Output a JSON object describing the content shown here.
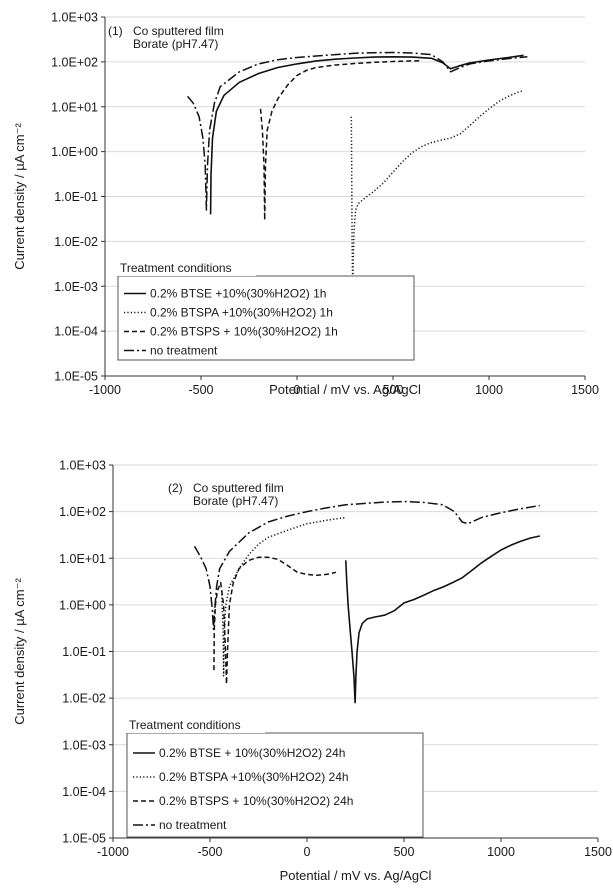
{
  "chart_data": [
    {
      "type": "line",
      "panel_label": "(1)",
      "annotation_lines": [
        "Co sputtered film",
        "Borate (pH7.47)"
      ],
      "xlabel": "Potential / mV vs. Ag/AgCl",
      "ylabel": "Current density / µA cm⁻²",
      "xscale": "linear",
      "yscale": "log",
      "xlim": [
        -1000,
        1500
      ],
      "ylim": [
        1e-05,
        1000
      ],
      "x_ticks": [
        -1000,
        -500,
        0,
        500,
        1000,
        1500
      ],
      "x_tick_labels": [
        "-1000",
        "-500",
        "0",
        "500",
        "1000",
        "1500"
      ],
      "y_ticks": [
        1e-05,
        0.0001,
        0.001,
        0.01,
        0.1,
        1,
        10,
        100,
        1000
      ],
      "y_tick_labels": [
        "1.0E-05",
        "1.0E-04",
        "1.0E-03",
        "1.0E-02",
        "1.0E-01",
        "1.0E+00",
        "1.0E+01",
        "1.0E+02",
        "1.0E+03"
      ],
      "legend_title": "Treatment conditions",
      "legend_position": "lower-left",
      "series": [
        {
          "name": "0.2% BTSE +10%(30%H2O2)  1h",
          "style": "solid",
          "points": [
            [
              -450,
              0.04
            ],
            [
              -448,
              0.3
            ],
            [
              -440,
              2
            ],
            [
              -420,
              8
            ],
            [
              -380,
              18
            ],
            [
              -300,
              35
            ],
            [
              -200,
              55
            ],
            [
              -100,
              75
            ],
            [
              0,
              90
            ],
            [
              100,
              105
            ],
            [
              200,
              115
            ],
            [
              300,
              122
            ],
            [
              400,
              128
            ],
            [
              500,
              130
            ],
            [
              600,
              128
            ],
            [
              700,
              120
            ],
            [
              760,
              95
            ],
            [
              800,
              70
            ],
            [
              840,
              80
            ],
            [
              900,
              95
            ],
            [
              1000,
              110
            ],
            [
              1100,
              125
            ],
            [
              1180,
              140
            ]
          ]
        },
        {
          "name": "0.2% BTSPA +10%(30%H2O2)   1h",
          "style": "dotted",
          "points": [
            [
              283,
              6
            ],
            [
              285,
              0.5
            ],
            [
              287,
              0.01
            ],
            [
              290,
              0.0008
            ],
            [
              293,
              0.005
            ],
            [
              298,
              0.02
            ],
            [
              305,
              0.05
            ],
            [
              320,
              0.07
            ],
            [
              350,
              0.09
            ],
            [
              400,
              0.13
            ],
            [
              450,
              0.2
            ],
            [
              500,
              0.35
            ],
            [
              550,
              0.6
            ],
            [
              600,
              0.95
            ],
            [
              650,
              1.3
            ],
            [
              700,
              1.6
            ],
            [
              750,
              1.8
            ],
            [
              800,
              2
            ],
            [
              850,
              2.5
            ],
            [
              900,
              3.8
            ],
            [
              950,
              6
            ],
            [
              1000,
              9
            ],
            [
              1050,
              13
            ],
            [
              1100,
              17
            ],
            [
              1150,
              21
            ],
            [
              1180,
              23
            ]
          ]
        },
        {
          "name": "0.2% BTSPS + 10%(30%H2O2) 1h",
          "style": "dashed",
          "points": [
            [
              -190,
              9
            ],
            [
              -180,
              3
            ],
            [
              -172,
              0.5
            ],
            [
              -168,
              0.03
            ],
            [
              -164,
              0.5
            ],
            [
              -155,
              3
            ],
            [
              -130,
              8
            ],
            [
              -100,
              15
            ],
            [
              -50,
              30
            ],
            [
              0,
              50
            ],
            [
              50,
              65
            ],
            [
              100,
              75
            ],
            [
              200,
              85
            ],
            [
              300,
              92
            ],
            [
              400,
              98
            ],
            [
              500,
              102
            ],
            [
              600,
              105
            ],
            [
              650,
              106
            ]
          ]
        },
        {
          "name": "no treatment",
          "style": "dashdot",
          "points": [
            [
              -570,
              17
            ],
            [
              -540,
              12
            ],
            [
              -510,
              6
            ],
            [
              -490,
              2
            ],
            [
              -478,
              0.5
            ],
            [
              -472,
              0.05
            ],
            [
              -466,
              0.5
            ],
            [
              -455,
              3
            ],
            [
              -430,
              12
            ],
            [
              -400,
              28
            ],
            [
              -300,
              60
            ],
            [
              -200,
              90
            ],
            [
              -100,
              112
            ],
            [
              0,
              125
            ],
            [
              100,
              135
            ],
            [
              200,
              145
            ],
            [
              300,
              155
            ],
            [
              400,
              160
            ],
            [
              500,
              162
            ],
            [
              600,
              158
            ],
            [
              700,
              145
            ],
            [
              760,
              100
            ],
            [
              800,
              60
            ],
            [
              850,
              75
            ],
            [
              900,
              90
            ],
            [
              1000,
              105
            ],
            [
              1100,
              118
            ],
            [
              1200,
              130
            ]
          ]
        }
      ]
    },
    {
      "type": "line",
      "panel_label": "(2)",
      "annotation_lines": [
        "Co sputtered film",
        "Borate (pH7.47)"
      ],
      "xlabel": "Potential / mV vs. Ag/AgCl",
      "ylabel": "Current density / µA cm⁻²",
      "xscale": "linear",
      "yscale": "log",
      "xlim": [
        -1000,
        1500
      ],
      "ylim": [
        1e-05,
        1000
      ],
      "x_ticks": [
        -1000,
        -500,
        0,
        500,
        1000,
        1500
      ],
      "x_tick_labels": [
        "-1000",
        "-500",
        "0",
        "500",
        "1000",
        "1500"
      ],
      "y_ticks": [
        1e-05,
        0.0001,
        0.001,
        0.01,
        0.1,
        1,
        10,
        100,
        1000
      ],
      "y_tick_labels": [
        "1.0E-05",
        "1.0E-04",
        "1.0E-03",
        "1.0E-02",
        "1.0E-01",
        "1.0E+00",
        "1.0E+01",
        "1.0E+02",
        "1.0E+03"
      ],
      "legend_title": "Treatment conditions",
      "legend_position": "lower-left",
      "series": [
        {
          "name": "0.2% BTSE + 10%(30%H2O2)  24h",
          "style": "solid",
          "points": [
            [
              200,
              9
            ],
            [
              205,
              3
            ],
            [
              212,
              1
            ],
            [
              222,
              0.3
            ],
            [
              232,
              0.1
            ],
            [
              242,
              0.03
            ],
            [
              248,
              0.008
            ],
            [
              252,
              0.03
            ],
            [
              258,
              0.1
            ],
            [
              268,
              0.25
            ],
            [
              285,
              0.4
            ],
            [
              310,
              0.5
            ],
            [
              350,
              0.55
            ],
            [
              400,
              0.6
            ],
            [
              450,
              0.75
            ],
            [
              500,
              1.1
            ],
            [
              550,
              1.3
            ],
            [
              600,
              1.6
            ],
            [
              650,
              2
            ],
            [
              700,
              2.4
            ],
            [
              750,
              3
            ],
            [
              800,
              3.8
            ],
            [
              850,
              5.5
            ],
            [
              900,
              8
            ],
            [
              950,
              11
            ],
            [
              1000,
              15
            ],
            [
              1050,
              19
            ],
            [
              1100,
              23
            ],
            [
              1150,
              27
            ],
            [
              1200,
              30
            ]
          ]
        },
        {
          "name": "0.2% BTSPA +10%(30%H2O2)  24h",
          "style": "dotted",
          "points": [
            [
              -440,
              2
            ],
            [
              -436,
              0.8
            ],
            [
              -432,
              0.2
            ],
            [
              -430,
              0.03
            ],
            [
              -426,
              0.3
            ],
            [
              -418,
              1
            ],
            [
              -400,
              2.5
            ],
            [
              -350,
              6
            ],
            [
              -300,
              12
            ],
            [
              -250,
              20
            ],
            [
              -200,
              28
            ],
            [
              -100,
              40
            ],
            [
              0,
              55
            ],
            [
              100,
              65
            ],
            [
              200,
              75
            ]
          ]
        },
        {
          "name": "0.2% BTSPS + 10%(30%H2O2) 24h",
          "style": "dashed",
          "points": [
            [
              -480,
              0.04
            ],
            [
              -478,
              0.3
            ],
            [
              -472,
              1
            ],
            [
              -462,
              2
            ],
            [
              -445,
              3
            ],
            [
              -430,
              1
            ],
            [
              -420,
              0.1
            ],
            [
              -415,
              0.02
            ],
            [
              -410,
              0.1
            ],
            [
              -400,
              1
            ],
            [
              -380,
              3
            ],
            [
              -350,
              6
            ],
            [
              -300,
              9
            ],
            [
              -250,
              10.5
            ],
            [
              -200,
              10.5
            ],
            [
              -150,
              9.5
            ],
            [
              -100,
              7
            ],
            [
              -50,
              5
            ],
            [
              0,
              4.5
            ],
            [
              50,
              4.3
            ],
            [
              100,
              4.5
            ],
            [
              150,
              5
            ]
          ]
        },
        {
          "name": "no treatment",
          "style": "dashdot",
          "points": [
            [
              -580,
              18
            ],
            [
              -550,
              11
            ],
            [
              -520,
              6
            ],
            [
              -500,
              2.5
            ],
            [
              -488,
              0.8
            ],
            [
              -482,
              0.3
            ],
            [
              -476,
              0.8
            ],
            [
              -466,
              2.5
            ],
            [
              -450,
              6
            ],
            [
              -420,
              10
            ],
            [
              -400,
              14
            ],
            [
              -300,
              35
            ],
            [
              -200,
              60
            ],
            [
              -100,
              80
            ],
            [
              0,
              100
            ],
            [
              100,
              120
            ],
            [
              200,
              140
            ],
            [
              300,
              150
            ],
            [
              400,
              160
            ],
            [
              500,
              165
            ],
            [
              600,
              158
            ],
            [
              700,
              140
            ],
            [
              760,
              100
            ],
            [
              800,
              60
            ],
            [
              830,
              55
            ],
            [
              900,
              75
            ],
            [
              1000,
              95
            ],
            [
              1100,
              115
            ],
            [
              1200,
              135
            ]
          ]
        }
      ]
    }
  ]
}
